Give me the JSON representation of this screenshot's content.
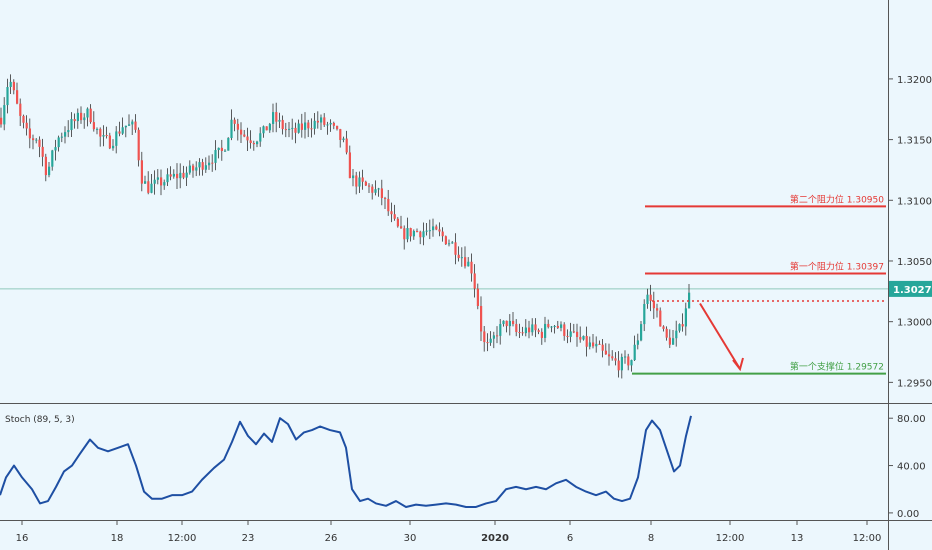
{
  "chart_data": [
    {
      "type": "candlestick",
      "title": "",
      "xlabel": "",
      "ylabel": "",
      "ylim": [
        1.2933,
        1.3265
      ],
      "y_ticks": [
        "1.32000",
        "1.31500",
        "1.31000",
        "1.30500",
        "1.30000",
        "1.29500"
      ],
      "y_tick_values": [
        1.32,
        1.315,
        1.31,
        1.305,
        1.3,
        1.295
      ],
      "x_tick_labels": [
        "16",
        "18",
        "12:00",
        "23",
        "26",
        "30",
        "2020",
        "6",
        "8",
        "12:00",
        "13",
        "12:00"
      ],
      "last_price": {
        "value": 1.3027,
        "label": "1.30270",
        "color": "#26a69a"
      },
      "candle_colors": {
        "up": "#26a69a",
        "down": "#ef5350",
        "wick": "#333333"
      },
      "price_path": [
        [
          0,
          1.3168
        ],
        [
          8,
          1.3202
        ],
        [
          20,
          1.3165
        ],
        [
          28,
          1.315
        ],
        [
          36,
          1.3152
        ],
        [
          46,
          1.3122
        ],
        [
          56,
          1.315
        ],
        [
          66,
          1.316
        ],
        [
          78,
          1.3168
        ],
        [
          88,
          1.3172
        ],
        [
          100,
          1.315
        ],
        [
          110,
          1.3148
        ],
        [
          122,
          1.3162
        ],
        [
          134,
          1.316
        ],
        [
          140,
          1.312
        ],
        [
          146,
          1.311
        ],
        [
          160,
          1.3115
        ],
        [
          175,
          1.312
        ],
        [
          190,
          1.3124
        ],
        [
          210,
          1.3135
        ],
        [
          222,
          1.314
        ],
        [
          232,
          1.317
        ],
        [
          240,
          1.3155
        ],
        [
          252,
          1.315
        ],
        [
          262,
          1.3155
        ],
        [
          272,
          1.3168
        ],
        [
          282,
          1.316
        ],
        [
          292,
          1.3155
        ],
        [
          305,
          1.3162
        ],
        [
          318,
          1.3165
        ],
        [
          330,
          1.316
        ],
        [
          342,
          1.3148
        ],
        [
          350,
          1.3118
        ],
        [
          362,
          1.3112
        ],
        [
          374,
          1.3108
        ],
        [
          382,
          1.3102
        ],
        [
          390,
          1.3085
        ],
        [
          400,
          1.3072
        ],
        [
          412,
          1.3074
        ],
        [
          425,
          1.3075
        ],
        [
          438,
          1.3072
        ],
        [
          450,
          1.3065
        ],
        [
          460,
          1.3055
        ],
        [
          470,
          1.3045
        ],
        [
          476,
          1.302
        ],
        [
          482,
          1.2982
        ],
        [
          488,
          1.2978
        ],
        [
          496,
          1.2992
        ],
        [
          506,
          1.3
        ],
        [
          516,
          1.299
        ],
        [
          528,
          1.2994
        ],
        [
          540,
          1.299
        ],
        [
          550,
          1.3
        ],
        [
          560,
          1.2994
        ],
        [
          572,
          1.2988
        ],
        [
          584,
          1.2982
        ],
        [
          596,
          1.2978
        ],
        [
          606,
          1.297
        ],
        [
          618,
          1.2965
        ],
        [
          630,
          1.2968
        ],
        [
          638,
          1.299
        ],
        [
          645,
          1.3025
        ],
        [
          650,
          1.3015
        ],
        [
          658,
          1.3005
        ],
        [
          664,
          1.2985
        ],
        [
          672,
          1.2985
        ],
        [
          680,
          1.2995
        ],
        [
          686,
          1.3018
        ],
        [
          691,
          1.3027
        ]
      ],
      "levels": [
        {
          "label": "第二个阻力位 1.30950",
          "value": 1.3095,
          "color": "#e53935",
          "style": "solid"
        },
        {
          "label": "第一个阻力位 1.30397",
          "value": 1.30397,
          "color": "#e53935",
          "style": "solid"
        },
        {
          "label": "第一个支撑位 1.29572",
          "value": 1.29572,
          "color": "#43a047",
          "style": "solid"
        }
      ],
      "pivot_level": {
        "value": 1.3017,
        "color": "#e53935",
        "style": "dotted"
      },
      "forecast_arrow": {
        "from": 1.3015,
        "to": 1.2961,
        "color": "#e53935"
      }
    },
    {
      "type": "line",
      "title": "Stoch (89, 5, 3)",
      "ylim": [
        -6,
        92
      ],
      "y_ticks": [
        "80.00",
        "40.00",
        "0.00"
      ],
      "y_tick_values": [
        80,
        40,
        0
      ],
      "series": [
        {
          "color": "#1e4fa3",
          "points": [
            [
              0,
              15
            ],
            [
              6,
              30
            ],
            [
              14,
              40
            ],
            [
              22,
              30
            ],
            [
              32,
              20
            ],
            [
              40,
              8
            ],
            [
              48,
              10
            ],
            [
              56,
              22
            ],
            [
              64,
              35
            ],
            [
              72,
              40
            ],
            [
              80,
              50
            ],
            [
              90,
              62
            ],
            [
              98,
              55
            ],
            [
              108,
              52
            ],
            [
              118,
              55
            ],
            [
              128,
              58
            ],
            [
              136,
              40
            ],
            [
              144,
              18
            ],
            [
              152,
              12
            ],
            [
              162,
              12
            ],
            [
              172,
              15
            ],
            [
              182,
              15
            ],
            [
              192,
              18
            ],
            [
              202,
              28
            ],
            [
              214,
              38
            ],
            [
              224,
              45
            ],
            [
              232,
              60
            ],
            [
              240,
              77
            ],
            [
              248,
              65
            ],
            [
              256,
              58
            ],
            [
              264,
              67
            ],
            [
              272,
              60
            ],
            [
              280,
              80
            ],
            [
              288,
              75
            ],
            [
              296,
              62
            ],
            [
              304,
              68
            ],
            [
              312,
              70
            ],
            [
              320,
              73
            ],
            [
              330,
              70
            ],
            [
              340,
              68
            ],
            [
              346,
              55
            ],
            [
              352,
              20
            ],
            [
              360,
              10
            ],
            [
              368,
              12
            ],
            [
              376,
              8
            ],
            [
              386,
              6
            ],
            [
              396,
              10
            ],
            [
              406,
              5
            ],
            [
              416,
              7
            ],
            [
              426,
              6
            ],
            [
              436,
              7
            ],
            [
              446,
              8
            ],
            [
              456,
              7
            ],
            [
              466,
              5
            ],
            [
              476,
              5
            ],
            [
              486,
              8
            ],
            [
              496,
              10
            ],
            [
              506,
              20
            ],
            [
              516,
              22
            ],
            [
              526,
              20
            ],
            [
              536,
              22
            ],
            [
              546,
              20
            ],
            [
              556,
              25
            ],
            [
              566,
              28
            ],
            [
              576,
              22
            ],
            [
              586,
              18
            ],
            [
              596,
              15
            ],
            [
              606,
              18
            ],
            [
              614,
              12
            ],
            [
              622,
              10
            ],
            [
              630,
              12
            ],
            [
              638,
              30
            ],
            [
              646,
              70
            ],
            [
              652,
              78
            ],
            [
              660,
              70
            ],
            [
              668,
              50
            ],
            [
              674,
              35
            ],
            [
              680,
              40
            ],
            [
              686,
              65
            ],
            [
              691,
              82
            ]
          ]
        }
      ]
    }
  ]
}
